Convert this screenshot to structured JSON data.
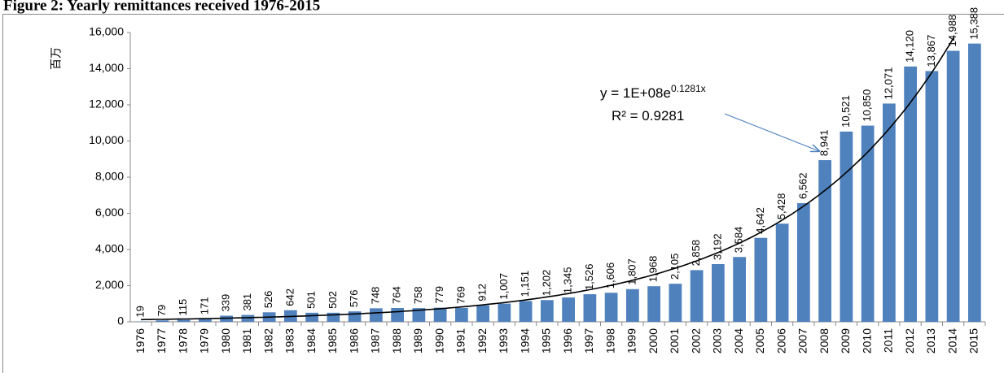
{
  "chart_data": {
    "type": "bar",
    "title": "Figure 2: Yearly remittances received 1976-2015",
    "y_label": "百万",
    "categories": [
      "1976",
      "1977",
      "1978",
      "1979",
      "1980",
      "1981",
      "1982",
      "1983",
      "1984",
      "1985",
      "1986",
      "1987",
      "1988",
      "1989",
      "1990",
      "1991",
      "1992",
      "1993",
      "1994",
      "1995",
      "1996",
      "1997",
      "1998",
      "1999",
      "2000",
      "2001",
      "2002",
      "2003",
      "2004",
      "2005",
      "2006",
      "2007",
      "2008",
      "2009",
      "2010",
      "2011",
      "2012",
      "2013",
      "2014",
      "2015"
    ],
    "values": [
      19,
      79,
      115,
      171,
      339,
      381,
      526,
      642,
      501,
      502,
      576,
      748,
      764,
      758,
      779,
      769,
      912,
      1007,
      1151,
      1202,
      1345,
      1526,
      1606,
      1807,
      1968,
      2105,
      2858,
      3192,
      3584,
      4642,
      5428,
      6562,
      8941,
      10521,
      10850,
      12071,
      14120,
      13867,
      14988,
      15388
    ],
    "value_labels": [
      "19",
      "79",
      "115",
      "171",
      "339",
      "381",
      "526",
      "642",
      "501",
      "502",
      "576",
      "748",
      "764",
      "758",
      "779",
      "769",
      "912",
      "1,007",
      "1,151",
      "1,202",
      "1,345",
      "1,526",
      "1,606",
      "1,807",
      "1,968",
      "2,105",
      "2,858",
      "3,192",
      "3,584",
      "4,642",
      "5,428",
      "6,562",
      "8,941",
      "10,521",
      "10,850",
      "12,071",
      "14,120",
      "13,867",
      "14,988",
      "15,388"
    ],
    "color": "#4f81bd",
    "ylim": [
      0,
      16000
    ],
    "yticks": [
      0,
      {
        "value": 2000,
        "label": "2,000"
      },
      {
        "value": 4000,
        "label": "4,000"
      },
      {
        "value": 6000,
        "label": "6,000"
      },
      {
        "value": 8000,
        "label": "8,000"
      },
      {
        "value": 10000,
        "label": "10,000"
      },
      {
        "value": 12000,
        "label": "12,000"
      },
      {
        "value": 14000,
        "label": "14,000"
      },
      {
        "value": 16000,
        "label": "16,000"
      }
    ],
    "trendline": "exponential",
    "equation": "y = 1E+08e",
    "equation_exponent": "0.1281x",
    "r_squared": "R² = 0.9281"
  }
}
